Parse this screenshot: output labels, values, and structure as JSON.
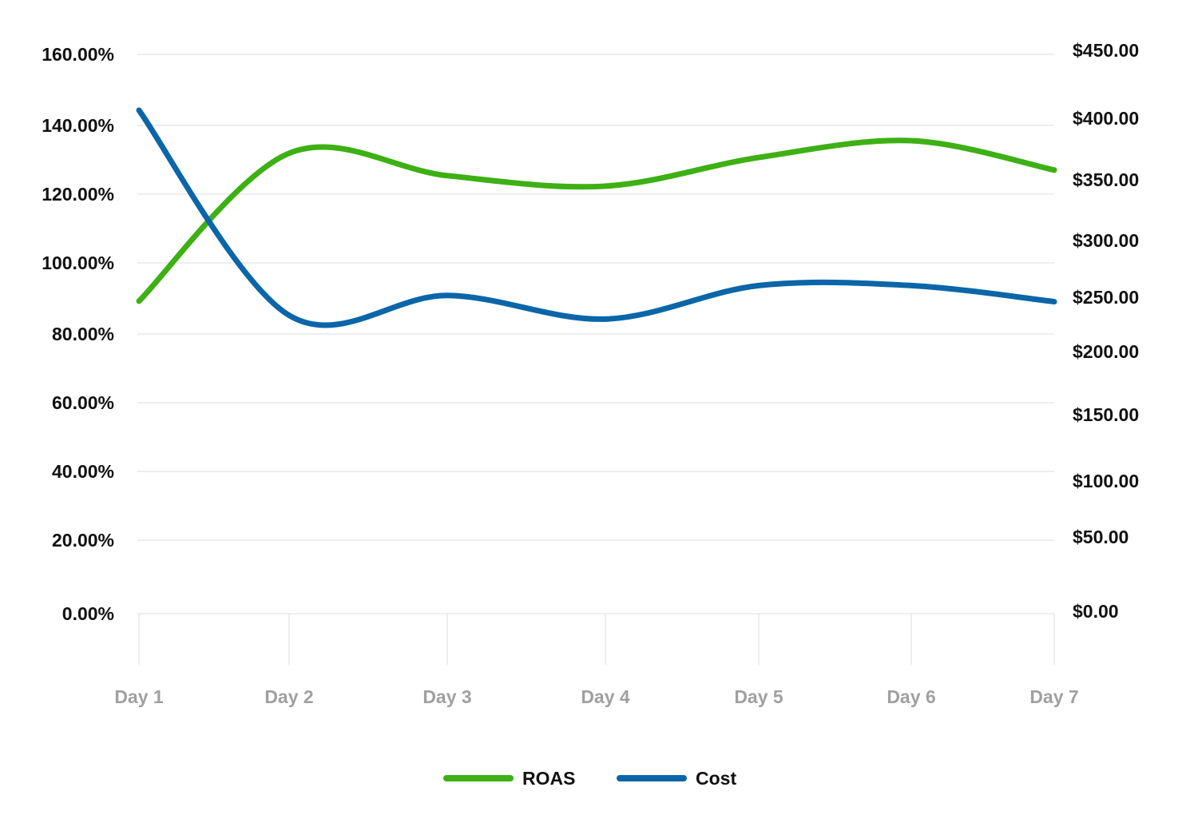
{
  "chart_data": {
    "type": "line",
    "title": "",
    "categories": [
      "Day 1",
      "Day 2",
      "Day 3",
      "Day 4",
      "Day 5",
      "Day 6",
      "Day 7"
    ],
    "series": [
      {
        "name": "ROAS",
        "axis": "left",
        "color": "#3db014",
        "values": [
          89.4,
          131.7,
          125.3,
          122.3,
          130.5,
          135.3,
          126.9
        ]
      },
      {
        "name": "Cost",
        "axis": "right",
        "color": "#0a66a8",
        "values": [
          405,
          240,
          256,
          237,
          264,
          264,
          251
        ]
      }
    ],
    "left_axis": {
      "ylim": [
        0,
        160
      ],
      "ticks": [
        "0.00%",
        "20.00%",
        "40.00%",
        "60.00%",
        "80.00%",
        "100.00%",
        "120.00%",
        "140.00%",
        "160.00%"
      ]
    },
    "right_axis": {
      "ylim": [
        0,
        450
      ],
      "ticks": [
        "$0.00",
        "$50.00",
        "$100.00",
        "$150.00",
        "$200.00",
        "$250.00",
        "$300.00",
        "$350.00",
        "$400.00",
        "$450.00"
      ]
    },
    "grid": true,
    "legend": "bottom-center",
    "smooth": true
  }
}
